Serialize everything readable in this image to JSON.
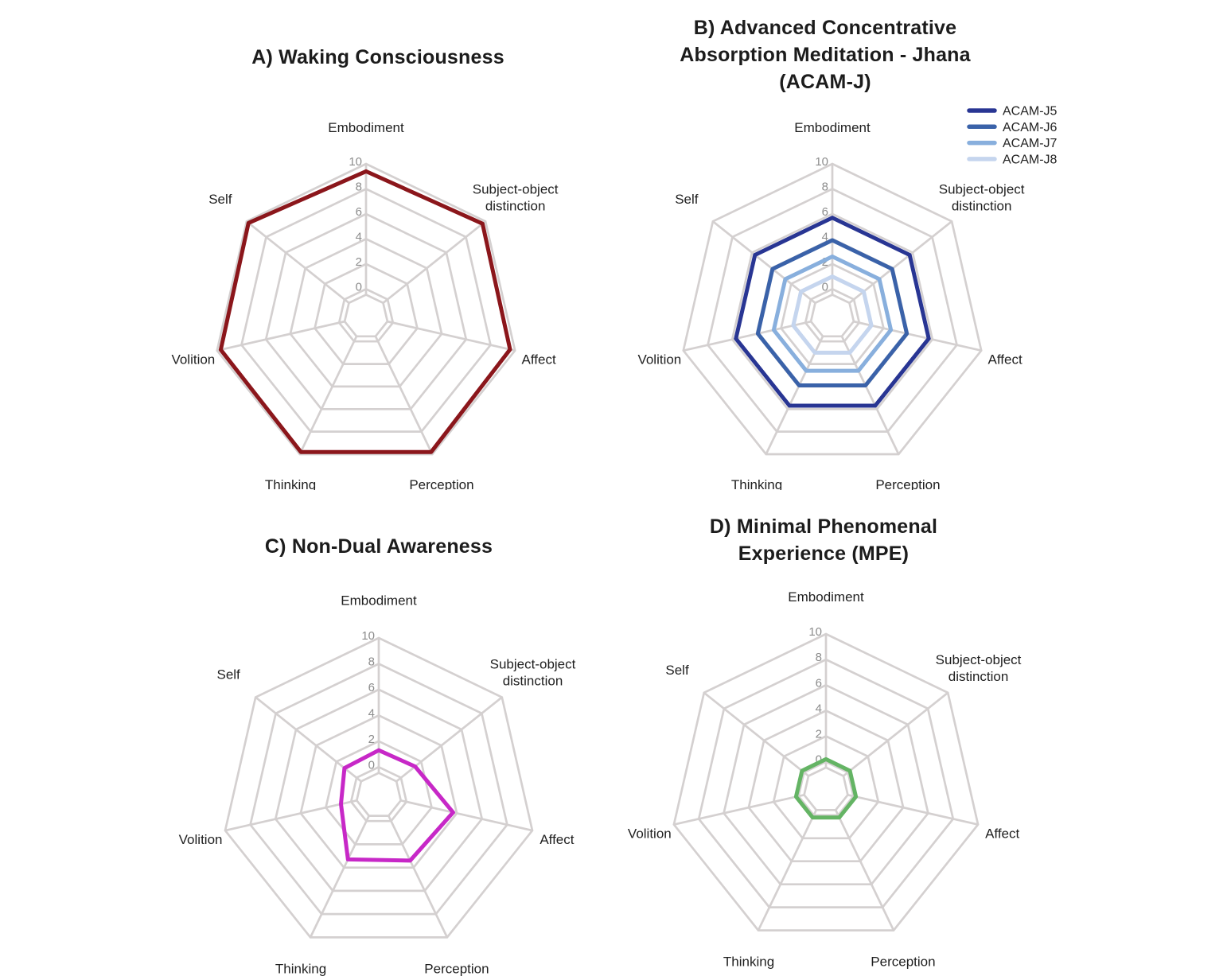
{
  "figure": {
    "background": "#ffffff",
    "grid_color": "#d4d0d0",
    "tick_color": "#8c8c8c",
    "text_color": "#1f1f1f"
  },
  "chart_data": [
    {
      "panel": "A",
      "type": "radar",
      "title": "A) Waking Consciousness",
      "categories": [
        "Embodiment",
        "Subject-object distinction",
        "Affect",
        "Perception",
        "Thinking",
        "Volition",
        "Self"
      ],
      "radial_ticks": [
        0,
        2,
        4,
        6,
        8,
        10
      ],
      "r_range": [
        0,
        10
      ],
      "grid": true,
      "legend": false,
      "series": [
        {
          "name": "Waking Consciousness",
          "color": "#8b161b",
          "values": [
            9.4,
            9.7,
            9.6,
            9.8,
            9.8,
            9.7,
            9.8
          ]
        }
      ]
    },
    {
      "panel": "B",
      "type": "radar",
      "title": "B) Advanced Concentrative\nAbsorption Meditation - Jhana\n(ACAM-J)",
      "categories": [
        "Embodiment",
        "Subject-object distinction",
        "Affect",
        "Perception",
        "Thinking",
        "Volition",
        "Self"
      ],
      "radial_ticks": [
        0,
        2,
        4,
        6,
        8,
        10
      ],
      "r_range": [
        0,
        10
      ],
      "grid": true,
      "legend": true,
      "legend_position": "top-right",
      "series": [
        {
          "name": "ACAM-J5",
          "color": "#283593",
          "values": [
            5.7,
            5.7,
            5.7,
            5.7,
            5.7,
            5.7,
            5.7
          ]
        },
        {
          "name": "ACAM-J6",
          "color": "#3a62a9",
          "values": [
            3.9,
            3.9,
            3.9,
            3.9,
            3.9,
            3.9,
            3.9
          ]
        },
        {
          "name": "ACAM-J7",
          "color": "#88afdd",
          "values": [
            2.6,
            2.6,
            2.6,
            2.6,
            2.6,
            2.6,
            2.6
          ]
        },
        {
          "name": "ACAM-J8",
          "color": "#c5d5ee",
          "values": [
            1.0,
            1.0,
            1.0,
            1.0,
            1.0,
            1.0,
            1.0
          ]
        }
      ]
    },
    {
      "panel": "C",
      "type": "radar",
      "title": "C) Non-Dual Awareness",
      "categories": [
        "Embodiment",
        "Subject-object distinction",
        "Affect",
        "Perception",
        "Thinking",
        "Volition",
        "Self"
      ],
      "radial_ticks": [
        0,
        2,
        4,
        6,
        8,
        10
      ],
      "r_range": [
        0,
        10
      ],
      "grid": true,
      "legend": false,
      "series": [
        {
          "name": "Non-Dual Awareness",
          "color": "#c728c7",
          "values": [
            1.3,
            1.4,
            3.7,
            3.4,
            3.3,
            0.8,
            1.2
          ]
        }
      ]
    },
    {
      "panel": "D",
      "type": "radar",
      "title": "D) Minimal Phenomenal\nExperience (MPE)",
      "categories": [
        "Embodiment",
        "Subject-object distinction",
        "Affect",
        "Perception",
        "Thinking",
        "Volition",
        "Self"
      ],
      "radial_ticks": [
        0,
        2,
        4,
        6,
        8,
        10
      ],
      "r_range": [
        0,
        10
      ],
      "grid": true,
      "legend": false,
      "series": [
        {
          "name": "Minimal Phenomenal Experience",
          "color": "#64b464",
          "values": [
            0.2,
            0.2,
            0.2,
            0.2,
            0.2,
            0.2,
            0.2
          ]
        }
      ]
    }
  ]
}
